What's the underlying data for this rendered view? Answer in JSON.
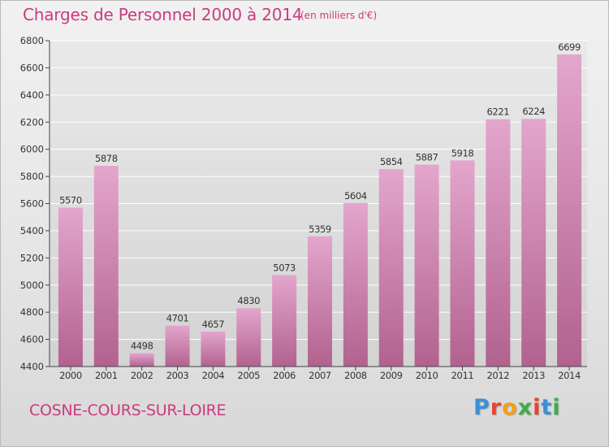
{
  "header": {
    "title": "Charges de Personnel 2000 à 2014",
    "subtitle": "(en milliers d'€)"
  },
  "footer": {
    "commune": "COSNE-COURS-SUR-LOIRE",
    "logo_text": "Proxiti",
    "logo_colors": [
      "#3a8fd6",
      "#e8442e",
      "#f2a01b",
      "#3fae49",
      "#e8442e",
      "#3a8fd6",
      "#3fae49"
    ]
  },
  "colors": {
    "text_accent": "#cc3a7e",
    "bar_top": "#e3a6cc",
    "bar_bottom": "#b2628f",
    "grid": "#ffffff"
  },
  "chart_data": {
    "type": "bar",
    "title": "Charges de Personnel 2000 à 2014",
    "subtitle": "(en milliers d'€)",
    "categories": [
      "2000",
      "2001",
      "2002",
      "2003",
      "2004",
      "2005",
      "2006",
      "2007",
      "2008",
      "2009",
      "2010",
      "2011",
      "2012",
      "2013",
      "2014"
    ],
    "values": [
      5570,
      5878,
      4498,
      4701,
      4657,
      4830,
      5073,
      5359,
      5604,
      5854,
      5887,
      5918,
      6221,
      6224,
      6699
    ],
    "y_ticks": [
      "4400",
      "4600",
      "4800",
      "5000",
      "5200",
      "5400",
      "5600",
      "5800",
      "6000",
      "6200",
      "6400",
      "6600",
      "6800"
    ],
    "ylim": [
      4400,
      6800
    ],
    "grid": true,
    "data_labels": true
  }
}
